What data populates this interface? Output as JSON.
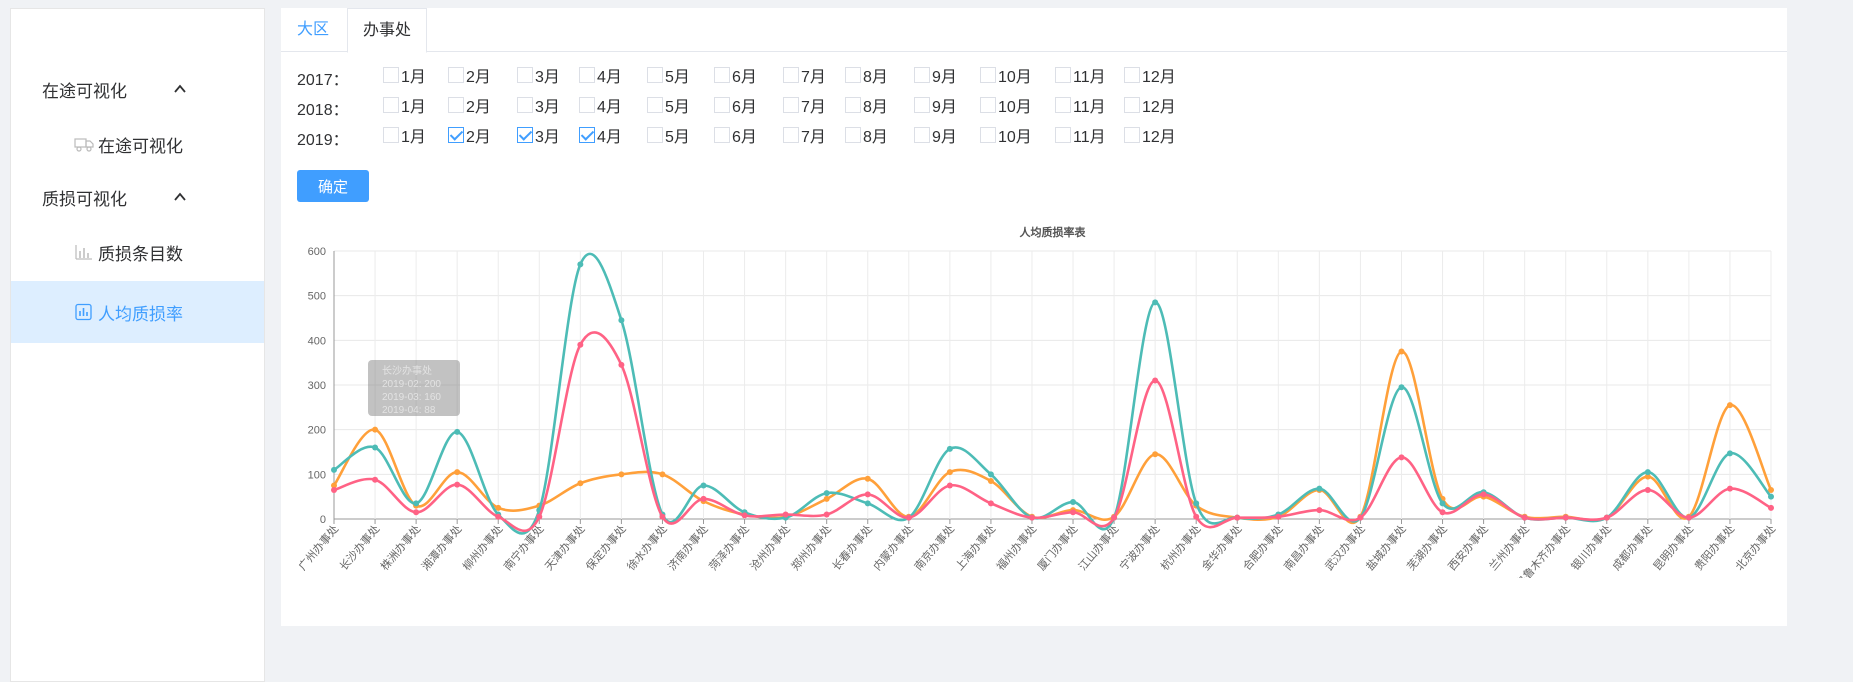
{
  "sidebar": {
    "groups": [
      {
        "label": "在途可视化",
        "items": [
          {
            "label": "在途可视化",
            "icon": "truck-icon"
          }
        ]
      },
      {
        "label": "质损可视化",
        "items": [
          {
            "label": "质损条目数",
            "icon": "bar-chart-icon"
          },
          {
            "label": "人均质损率",
            "icon": "bar-chart-box-icon"
          }
        ]
      }
    ],
    "active_color": "#409eff"
  },
  "tabs": [
    "大区",
    "办事处"
  ],
  "filters": {
    "years": [
      {
        "label": "2017：",
        "months": [
          "1月",
          "2月",
          "3月",
          "4月",
          "5月",
          "6月",
          "7月",
          "8月",
          "9月",
          "10月",
          "11月",
          "12月"
        ],
        "checked": []
      },
      {
        "label": "2018：",
        "months": [
          "1月",
          "2月",
          "3月",
          "4月",
          "5月",
          "6月",
          "7月",
          "8月",
          "9月",
          "10月",
          "11月",
          "12月"
        ],
        "checked": []
      },
      {
        "label": "2019：",
        "months": [
          "1月",
          "2月",
          "3月",
          "4月",
          "5月",
          "6月",
          "7月",
          "8月",
          "9月",
          "10月",
          "11月",
          "12月"
        ],
        "checked": [
          1,
          2,
          3
        ]
      }
    ],
    "confirm_label": "确定"
  },
  "chart_data": {
    "type": "line",
    "title": "人均质损率表",
    "ylim": [
      0,
      600
    ],
    "yticks": [
      0,
      100,
      200,
      300,
      400,
      500,
      600
    ],
    "categories": [
      "广州办事处",
      "长沙办事处",
      "株洲办事处",
      "湘潭办事处",
      "柳州办事处",
      "南宁办事处",
      "天津办事处",
      "保定办事处",
      "徐水办事处",
      "济南办事处",
      "菏泽办事处",
      "沧州办事处",
      "郑州办事处",
      "长春办事处",
      "内蒙办事处",
      "南京办事处",
      "上海办事处",
      "福州办事处",
      "厦门办事处",
      "江山办事处",
      "宁波办事处",
      "杭州办事处",
      "金华办事处",
      "合肥办事处",
      "南昌办事处",
      "武汉办事处",
      "盐城办事处",
      "芜湖办事处",
      "西安办事处",
      "兰州办事处",
      "乌鲁木齐办事处",
      "银川办事处",
      "成都办事处",
      "昆明办事处",
      "贵阳办事处",
      "北京办事处"
    ],
    "series": [
      {
        "name": "2019-02",
        "color": "#ffa03a",
        "values": [
          75,
          200,
          30,
          105,
          25,
          30,
          80,
          100,
          100,
          40,
          10,
          5,
          45,
          90,
          5,
          105,
          85,
          5,
          20,
          5,
          145,
          30,
          3,
          5,
          65,
          5,
          375,
          45,
          50,
          5,
          5,
          3,
          95,
          5,
          255,
          65
        ]
      },
      {
        "name": "2019-03",
        "color": "#4dbcb6",
        "values": [
          110,
          160,
          35,
          195,
          10,
          20,
          570,
          445,
          10,
          75,
          15,
          3,
          58,
          35,
          3,
          157,
          100,
          3,
          38,
          3,
          485,
          35,
          3,
          10,
          68,
          3,
          295,
          35,
          60,
          3,
          3,
          3,
          105,
          3,
          147,
          50
        ]
      },
      {
        "name": "2019-04",
        "color": "#ff6285",
        "values": [
          65,
          88,
          15,
          77,
          5,
          5,
          390,
          345,
          5,
          45,
          8,
          10,
          10,
          55,
          3,
          75,
          35,
          3,
          15,
          3,
          310,
          5,
          3,
          5,
          20,
          3,
          138,
          15,
          55,
          3,
          3,
          3,
          65,
          3,
          68,
          25
        ]
      }
    ],
    "tooltip": {
      "lines": [
        "长沙办事处",
        "2019-02: 200",
        "2019-03: 160",
        "2019-04: 88"
      ]
    }
  }
}
